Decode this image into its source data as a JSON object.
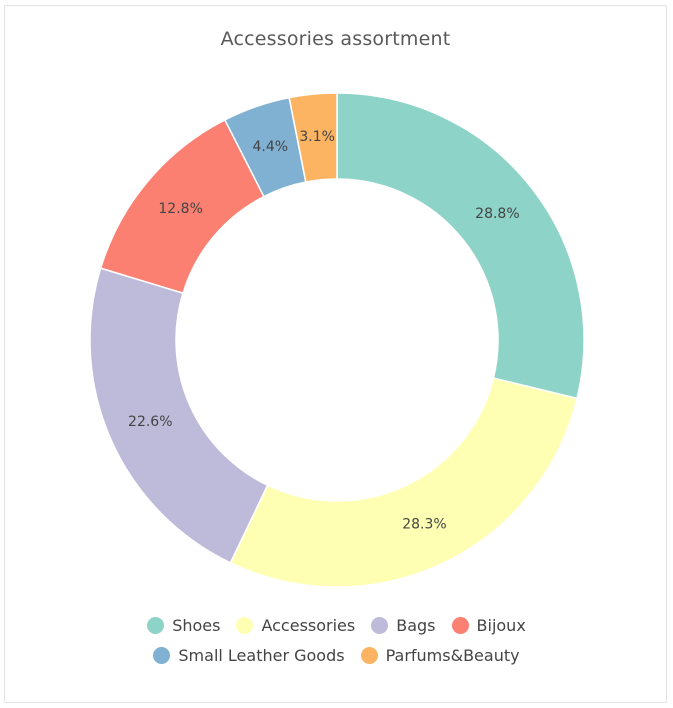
{
  "chart_data": {
    "type": "pie",
    "title": "Accessories assortment",
    "donut": true,
    "legend_position": "bottom",
    "slices": [
      {
        "name": "Shoes",
        "value": 28.8,
        "label": "28.8%",
        "color": "#8dd3c7"
      },
      {
        "name": "Accessories",
        "value": 28.3,
        "label": "28.3%",
        "color": "#ffffb3"
      },
      {
        "name": "Bags",
        "value": 22.6,
        "label": "22.6%",
        "color": "#bebada"
      },
      {
        "name": "Bijoux",
        "value": 12.8,
        "label": "12.8%",
        "color": "#fb8072"
      },
      {
        "name": "Small Leather Goods",
        "value": 4.4,
        "label": "4.4%",
        "color": "#80b1d3"
      },
      {
        "name": "Parfums&Beauty",
        "value": 3.1,
        "label": "3.1%",
        "color": "#fdb462"
      }
    ]
  }
}
